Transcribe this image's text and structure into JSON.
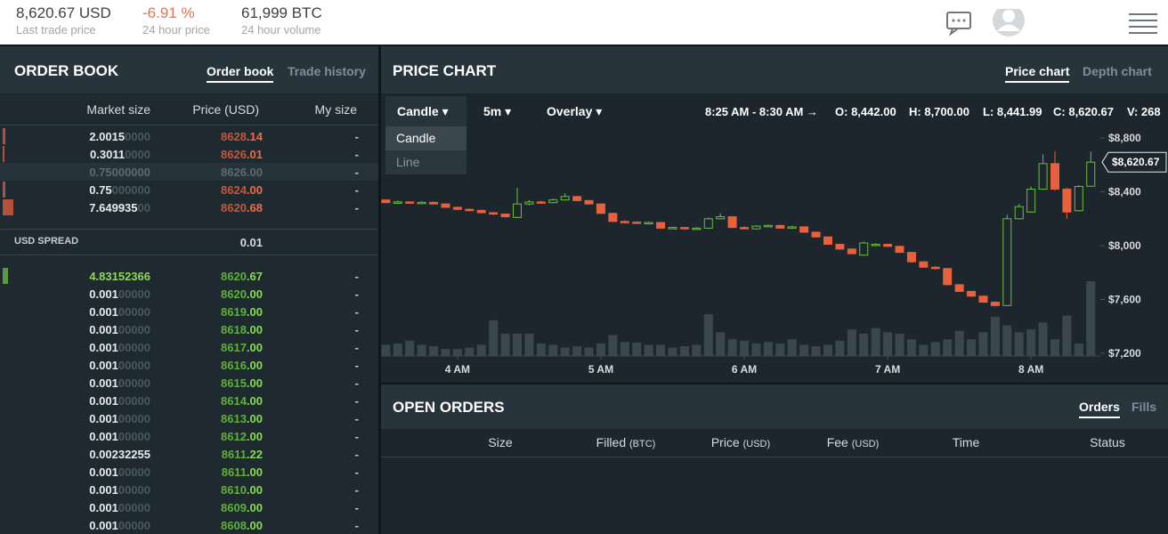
{
  "top_bar": {
    "stats": [
      {
        "value": "8,620.67 USD",
        "label": "Last trade price"
      },
      {
        "value": "-6.91 %",
        "label": "24 hour price"
      },
      {
        "value": "61,999 BTC",
        "label": "24 hour volume"
      }
    ]
  },
  "order_book": {
    "title": "ORDER BOOK",
    "tabs": [
      "Order book",
      "Trade history"
    ],
    "columns": [
      "Market size",
      "Price (USD)",
      "My size"
    ],
    "asks": [
      {
        "size": [
          "2.0015",
          "0000"
        ],
        "price": [
          "8628",
          ".14"
        ],
        "mine": "-"
      },
      {
        "size": [
          "0.3011",
          "0000"
        ],
        "price": [
          "8626",
          ".01"
        ],
        "mine": "-"
      },
      {
        "size": [
          "0.75000000"
        ],
        "price": [
          "8626.00"
        ],
        "mine": "-",
        "muted": true
      },
      {
        "size": [
          "0.75",
          "000000"
        ],
        "price": [
          "8624",
          ".00"
        ],
        "mine": "-"
      },
      {
        "size": [
          "7.649935",
          "00"
        ],
        "price": [
          "8620",
          ".68"
        ],
        "mine": "-"
      }
    ],
    "spread": {
      "label": "USD SPREAD",
      "value": "0.01"
    },
    "bids": [
      {
        "size": [
          "4.83152366"
        ],
        "price": [
          "8620",
          ".67"
        ],
        "mine": "-"
      },
      {
        "size": [
          "0.001",
          "00000"
        ],
        "price": [
          "8620",
          ".00"
        ],
        "mine": "-"
      },
      {
        "size": [
          "0.001",
          "00000"
        ],
        "price": [
          "8619",
          ".00"
        ],
        "mine": "-"
      },
      {
        "size": [
          "0.001",
          "00000"
        ],
        "price": [
          "8618",
          ".00"
        ],
        "mine": "-"
      },
      {
        "size": [
          "0.001",
          "00000"
        ],
        "price": [
          "8617",
          ".00"
        ],
        "mine": "-"
      },
      {
        "size": [
          "0.001",
          "00000"
        ],
        "price": [
          "8616",
          ".00"
        ],
        "mine": "-"
      },
      {
        "size": [
          "0.001",
          "00000"
        ],
        "price": [
          "8615",
          ".00"
        ],
        "mine": "-"
      },
      {
        "size": [
          "0.001",
          "00000"
        ],
        "price": [
          "8614",
          ".00"
        ],
        "mine": "-"
      },
      {
        "size": [
          "0.001",
          "00000"
        ],
        "price": [
          "8613",
          ".00"
        ],
        "mine": "-"
      },
      {
        "size": [
          "0.001",
          "00000"
        ],
        "price": [
          "8612",
          ".00"
        ],
        "mine": "-"
      },
      {
        "size": [
          "0.00232255"
        ],
        "price": [
          "8611",
          ".22"
        ],
        "mine": "-"
      },
      {
        "size": [
          "0.001",
          "00000"
        ],
        "price": [
          "8611",
          ".00"
        ],
        "mine": "-"
      },
      {
        "size": [
          "0.001",
          "00000"
        ],
        "price": [
          "8610",
          ".00"
        ],
        "mine": "-"
      },
      {
        "size": [
          "0.001",
          "00000"
        ],
        "price": [
          "8609",
          ".00"
        ],
        "mine": "-"
      },
      {
        "size": [
          "0.001",
          "00000"
        ],
        "price": [
          "8608",
          ".00"
        ],
        "mine": "-"
      }
    ]
  },
  "price_chart": {
    "title": "PRICE CHART",
    "tabs": [
      "Price chart",
      "Depth chart"
    ],
    "controls": [
      "Candle",
      "5m",
      "Overlay"
    ],
    "menu": [
      "Candle",
      "Line"
    ],
    "range": "8:25 AM - 8:30 AM →",
    "ohlcv": [
      {
        "key": "O:",
        "value": "8,442.00"
      },
      {
        "key": "H:",
        "value": "8,700.00"
      },
      {
        "key": "L:",
        "value": "8,441.99"
      },
      {
        "key": "C:",
        "value": "8,620.67"
      },
      {
        "key": "V:",
        "value": "268"
      }
    ]
  },
  "chart_data": {
    "type": "candlestick",
    "up_color": "#6abf40",
    "down_color": "#e8603c",
    "volume_color": "#3b474e",
    "x": [
      0,
      5,
      10,
      15,
      20,
      25,
      30,
      35,
      40,
      45,
      50,
      55,
      60,
      65,
      70,
      75,
      80,
      85,
      90,
      95,
      100,
      105,
      110,
      115,
      120,
      125,
      130,
      135,
      140,
      145,
      150,
      155,
      160,
      165,
      170,
      175,
      180,
      185,
      190,
      195,
      200,
      205,
      210,
      215,
      220,
      225,
      230,
      235,
      240,
      245,
      250,
      255,
      260,
      265,
      270,
      275,
      280,
      285,
      290,
      295
    ],
    "open": [
      8340,
      8320,
      8325,
      8315,
      8322,
      8310,
      8285,
      8270,
      8262,
      8245,
      8235,
      8210,
      8310,
      8325,
      8320,
      8340,
      8365,
      8335,
      8310,
      8240,
      8180,
      8175,
      8170,
      8172,
      8130,
      8135,
      8125,
      8130,
      8200,
      8215,
      8135,
      8125,
      8145,
      8150,
      8130,
      8140,
      8100,
      8065,
      8010,
      7975,
      7930,
      8000,
      8010,
      7995,
      7950,
      7880,
      7840,
      7830,
      7710,
      7660,
      7625,
      7580,
      7555,
      8200,
      8250,
      8420,
      8610,
      8420,
      8260,
      8442
    ],
    "high": [
      8345,
      8335,
      8330,
      8330,
      8328,
      8315,
      8290,
      8278,
      8268,
      8250,
      8240,
      8430,
      8340,
      8335,
      8350,
      8390,
      8370,
      8340,
      8315,
      8245,
      8190,
      8182,
      8180,
      8178,
      8142,
      8140,
      8138,
      8210,
      8240,
      8220,
      8145,
      8152,
      8158,
      8155,
      8148,
      8145,
      8105,
      8070,
      8015,
      7980,
      8030,
      8018,
      8015,
      8000,
      7955,
      7885,
      7848,
      7835,
      7715,
      7665,
      7630,
      7585,
      8230,
      8310,
      8440,
      8680,
      8700,
      8430,
      8450,
      8700
    ],
    "low": [
      8315,
      8315,
      8310,
      8310,
      8305,
      8280,
      8262,
      8255,
      8240,
      8228,
      8210,
      8205,
      8300,
      8312,
      8315,
      8335,
      8330,
      8305,
      8235,
      8175,
      8165,
      8162,
      8165,
      8125,
      8125,
      8118,
      8120,
      8125,
      8195,
      8130,
      8122,
      8120,
      8140,
      8125,
      8125,
      8095,
      8060,
      8005,
      7968,
      7935,
      7925,
      7995,
      7990,
      7945,
      7875,
      7835,
      7822,
      7705,
      7655,
      7618,
      7575,
      7548,
      7550,
      8195,
      8245,
      8415,
      8410,
      8200,
      8255,
      8441.99
    ],
    "close": [
      8320,
      8325,
      8315,
      8322,
      8310,
      8285,
      8270,
      8262,
      8245,
      8235,
      8215,
      8310,
      8325,
      8320,
      8340,
      8365,
      8335,
      8310,
      8240,
      8180,
      8175,
      8170,
      8172,
      8130,
      8135,
      8125,
      8130,
      8200,
      8215,
      8135,
      8130,
      8145,
      8150,
      8130,
      8140,
      8100,
      8065,
      8010,
      7975,
      7940,
      8020,
      8010,
      7995,
      7950,
      7880,
      7840,
      7830,
      7710,
      7660,
      7625,
      7580,
      7555,
      8200,
      8290,
      8420,
      8610,
      8420,
      8250,
      8440,
      8620.67
    ],
    "volume": [
      40,
      45,
      55,
      40,
      35,
      25,
      25,
      30,
      40,
      128,
      80,
      80,
      80,
      45,
      40,
      30,
      35,
      30,
      45,
      75,
      50,
      48,
      40,
      40,
      30,
      35,
      40,
      150,
      85,
      60,
      55,
      45,
      50,
      45,
      60,
      40,
      35,
      40,
      55,
      95,
      80,
      100,
      85,
      80,
      60,
      40,
      50,
      60,
      90,
      60,
      85,
      140,
      110,
      85,
      95,
      120,
      60,
      145,
      45,
      268
    ],
    "xlim": [
      -2,
      299
    ],
    "ylim": [
      7180,
      8880
    ],
    "vlim": [
      0,
      820
    ],
    "xticks": [
      {
        "value": 30,
        "label": "4 AM"
      },
      {
        "value": 90,
        "label": "5 AM"
      },
      {
        "value": 150,
        "label": "6 AM"
      },
      {
        "value": 210,
        "label": "7 AM"
      },
      {
        "value": 270,
        "label": "8 AM"
      }
    ],
    "yticks": [
      {
        "value": 7200,
        "label": "$7,200"
      },
      {
        "value": 7600,
        "label": "$7,600"
      },
      {
        "value": 8000,
        "label": "$8,000"
      },
      {
        "value": 8400,
        "label": "$8,400"
      },
      {
        "value": 8800,
        "label": "$8,800"
      }
    ],
    "last_price": {
      "value": 8620.67,
      "label": "$8,620.67"
    }
  },
  "open_orders": {
    "title": "OPEN ORDERS",
    "tabs": [
      "Orders",
      "Fills"
    ],
    "columns": [
      {
        "label": "Size"
      },
      {
        "label": "Filled",
        "unit": "(BTC)"
      },
      {
        "label": "Price",
        "unit": "(USD)"
      },
      {
        "label": "Fee",
        "unit": "(USD)"
      },
      {
        "label": "Time"
      },
      {
        "label": "Status"
      }
    ]
  }
}
